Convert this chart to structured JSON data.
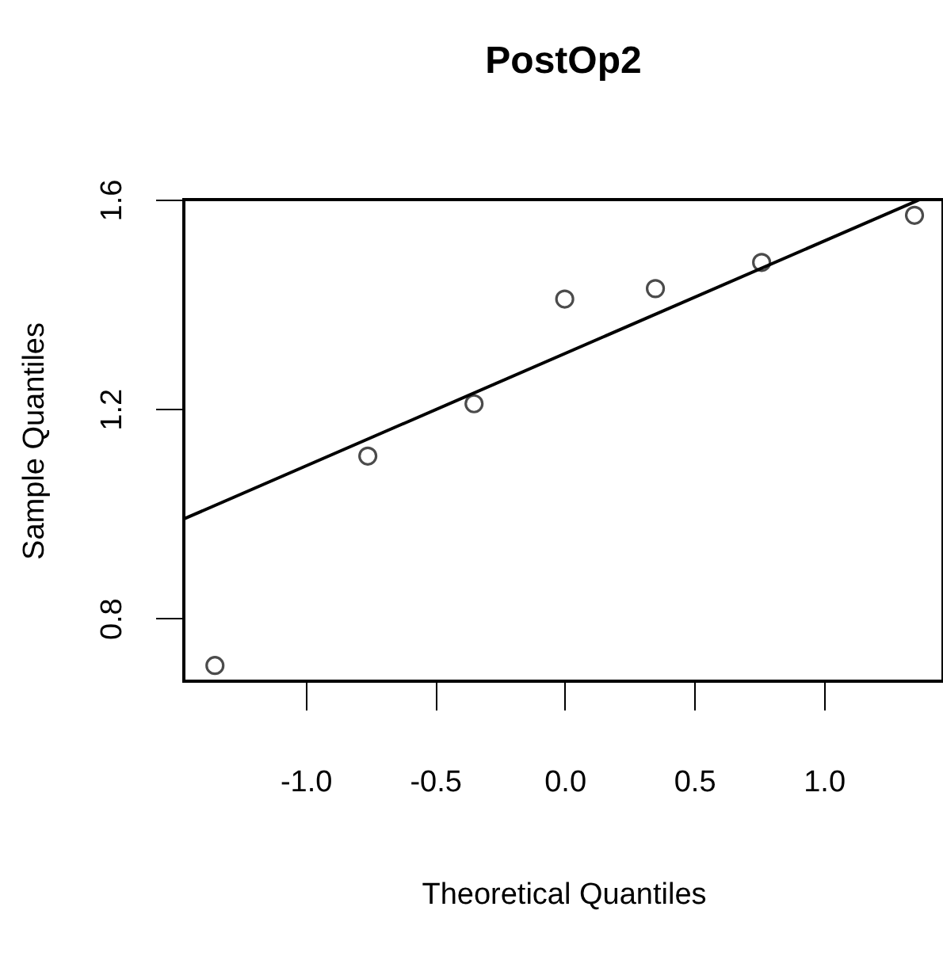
{
  "chart_data": {
    "type": "scatter",
    "title": "PostOp2",
    "xlabel": "Theoretical Quantiles",
    "ylabel": "Sample Quantiles",
    "xlim": [
      -1.47,
      1.46
    ],
    "ylim": [
      0.68,
      1.6
    ],
    "xticks": [
      {
        "value": -1,
        "label": "-1.0"
      },
      {
        "value": -0.5,
        "label": "-0.5"
      },
      {
        "value": 0,
        "label": "0.0"
      },
      {
        "value": 0.5,
        "label": "0.5"
      },
      {
        "value": 1,
        "label": "1.0"
      }
    ],
    "yticks": [
      0.8,
      1.2,
      1.6
    ],
    "grid": false,
    "series": [
      {
        "marker": "circle",
        "color": "#000000",
        "x": [
          -1.35,
          -0.76,
          -0.35,
          0,
          0.35,
          0.76,
          1.35
        ],
        "values": [
          0.71,
          1.11,
          1.21,
          1.41,
          1.43,
          1.48,
          1.57
        ]
      },
      {
        "type": "line",
        "color": "#000000",
        "line_style": "solid",
        "x": [
          -1.47,
          1.37
        ],
        "values": [
          0.99,
          1.6
        ]
      }
    ]
  }
}
